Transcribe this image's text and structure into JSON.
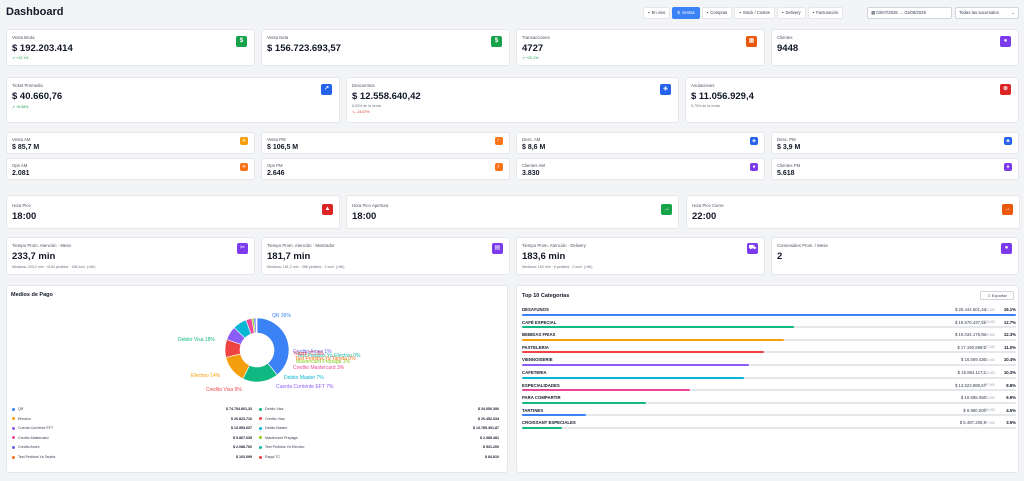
{
  "header": {
    "title": "Dashboard",
    "tabs": [
      {
        "label": "En vivo",
        "icon": "live-icon",
        "active": false
      },
      {
        "label": "Ventas",
        "icon": "dollar-icon",
        "active": true
      },
      {
        "label": "Compras",
        "icon": "cart-icon",
        "active": false
      },
      {
        "label": "Stock / Costos",
        "icon": "box-icon",
        "active": false
      },
      {
        "label": "Delivery",
        "icon": "truck-icon",
        "active": false
      },
      {
        "label": "Facturación",
        "icon": "invoice-icon",
        "active": false
      }
    ],
    "date_range": "03/07/2026 → 01/08/2026",
    "branch_select": "Todas las sucursales"
  },
  "kpis_row1": [
    {
      "label": "Venta Bruta",
      "value": "$ 192.203.414",
      "trend": "↗ +12.1%",
      "icon": "$",
      "color": "#16a34a"
    },
    {
      "label": "Venta Neta",
      "value": "$ 156.723.693,57",
      "trend": "",
      "icon": "$",
      "color": "#16a34a"
    },
    {
      "label": "Transacciones",
      "value": "4727",
      "trend": "↗ +20.1%",
      "icon": "▦",
      "color": "#ea580c"
    },
    {
      "label": "Clientes",
      "value": "9448",
      "trend": "",
      "icon": "👤",
      "color": "#7c3aed"
    }
  ],
  "kpis_row2": [
    {
      "label": "Ticket Promedio",
      "value": "$ 40.660,76",
      "sub": "",
      "trend": "↗ +6.08%",
      "icon": "↗",
      "color": "#2563eb"
    },
    {
      "label": "Descuentos",
      "value": "$ 12.558.640,42",
      "sub": "6,53% de la venta",
      "trend": "↘ -14.07%",
      "icon": "◈",
      "color": "#2563eb"
    },
    {
      "label": "Anulaciones",
      "value": "$ 11.056.929,4",
      "sub": "5,75% de la venta",
      "trend": "",
      "icon": "⊗",
      "color": "#dc2626"
    }
  ],
  "kpis_small": [
    {
      "label": "Venta AM",
      "value": "$ 85,7 M",
      "icon": "☀",
      "color": "#f59e0b"
    },
    {
      "label": "Venta PM",
      "value": "$ 106,5 M",
      "icon": "☾",
      "color": "#f97316"
    },
    {
      "label": "Desc. AM",
      "value": "$ 8,6 M",
      "icon": "◈",
      "color": "#2563eb"
    },
    {
      "label": "Desc. PM",
      "value": "$ 3,9 M",
      "icon": "◈",
      "color": "#2563eb"
    },
    {
      "label": "Ops AM",
      "value": "2.081",
      "icon": "☀",
      "color": "#f97316"
    },
    {
      "label": "Ops PM",
      "value": "2.646",
      "icon": "☾",
      "color": "#f97316"
    },
    {
      "label": "Clientes AM",
      "value": "3.830",
      "icon": "👤",
      "color": "#7c3aed"
    },
    {
      "label": "Clientes PM",
      "value": "5.618",
      "icon": "👤",
      "color": "#7c3aed"
    }
  ],
  "kpis_hours": [
    {
      "label": "Hora Pico",
      "value": "18:00",
      "icon": "🔥",
      "color": "#dc2626"
    },
    {
      "label": "Hora Pico Apertura",
      "value": "18:00",
      "icon": "→",
      "color": "#16a34a"
    },
    {
      "label": "Hora Pico Cierre",
      "value": "22:00",
      "icon": "→",
      "color": "#ea580c"
    }
  ],
  "kpis_times": [
    {
      "label": "Tiempo Prom. Atención · Mesa",
      "value": "233,7 min",
      "sub": "Mediana: 220,2 min · 4184 pedidos · 186 excl. (>8h)",
      "icon": "✂",
      "color": "#7c3aed"
    },
    {
      "label": "Tiempo Prom. Atención · Mostrador",
      "value": "181,7 min",
      "sub": "Mediana: 181,2 min · 388 pedidos · 2 excl. (>8h)",
      "icon": "▤",
      "color": "#7c3aed"
    },
    {
      "label": "Tiempo Prom. Atención · Delivery",
      "value": "183,6 min",
      "sub": "Mediana: 183 min · 6 pedidos · 0 excl. (>8h)",
      "icon": "⛟",
      "color": "#7c3aed"
    },
    {
      "label": "Comensales Prom. / Mesa",
      "value": "2",
      "sub": "",
      "icon": "👥",
      "color": "#7c3aed"
    }
  ],
  "payments": {
    "title": "Medios de Pago",
    "chart_data": {
      "type": "pie",
      "donut": true,
      "slices": [
        {
          "label": "QR 39%",
          "name": "QR",
          "value": 39,
          "color": "#3b82f6"
        },
        {
          "label": "Debito Visa 18%",
          "name": "Debito Visa",
          "value": 18,
          "color": "#10b981"
        },
        {
          "label": "Efectivo 14%",
          "name": "Efectivo",
          "value": 14,
          "color": "#f59e0b"
        },
        {
          "label": "Credito Visa 9%",
          "name": "Credito Visa",
          "value": 9,
          "color": "#ef4444"
        },
        {
          "label": "Cuenta Corriente EFT 7%",
          "name": "Cuenta Corriente EFT",
          "value": 7,
          "color": "#8b5cf6"
        },
        {
          "label": "Debito Master 7%",
          "name": "Debito Master",
          "value": 7,
          "color": "#06b6d4"
        },
        {
          "label": "Credito Mastercard 3%",
          "name": "Credito Mastercard",
          "value": 3,
          "color": "#ec4899"
        },
        {
          "label": "Mastercard Prepaga 1%",
          "name": "Mastercard Prepaga",
          "value": 1,
          "color": "#84cc16"
        },
        {
          "label": "Credito Amex 1%",
          "name": "Credito Amex",
          "value": 1,
          "color": "#6366f1"
        },
        {
          "label": "Test Pedidos Ya Efectivo 0%",
          "name": "Test Pedidos Ya Efectivo",
          "value": 0.3,
          "color": "#14b8a6"
        },
        {
          "label": "Test Pedidos Ya Tarjeta 0%",
          "name": "Test Pedidos Ya Tarjeta",
          "value": 0.2,
          "color": "#f97316"
        },
        {
          "label": "Rappi TC 0%",
          "name": "Rappi TC",
          "value": 0.1,
          "color": "#ef4444"
        }
      ]
    },
    "legend_left": [
      {
        "name": "QR",
        "value": "$ 74.754.801,33",
        "color": "#3b82f6"
      },
      {
        "name": "Efectivo",
        "value": "$ 26.823.716",
        "color": "#f59e0b"
      },
      {
        "name": "Cuenta Corriente EFT",
        "value": "$ 13.553.607",
        "color": "#8b5cf6"
      },
      {
        "name": "Credito Mastercard",
        "value": "$ 5.867.635",
        "color": "#ec4899"
      },
      {
        "name": "Credito Amex",
        "value": "$ 2.088.760",
        "color": "#6366f1"
      },
      {
        "name": "Test Pedidos Ya Tarjeta",
        "value": "$ 163.099",
        "color": "#f97316"
      }
    ],
    "legend_right": [
      {
        "name": "Debito Visa",
        "value": "$ 34.050.390",
        "color": "#10b981"
      },
      {
        "name": "Credito Visa",
        "value": "$ 20.452.334",
        "color": "#ef4444"
      },
      {
        "name": "Debito Master",
        "value": "$ 13.785.301,87",
        "color": "#06b6d4"
      },
      {
        "name": "Mastercard Prepaga",
        "value": "$ 2.385.481",
        "color": "#84cc16"
      },
      {
        "name": "Test Pedidos Ya Efectivo",
        "value": "$ 531.200",
        "color": "#14b8a6"
      },
      {
        "name": "Rappi TC",
        "value": "$ 84.810",
        "color": "#ef4444"
      }
    ]
  },
  "categories": {
    "title": "Top 10 Categorías",
    "export_label": "Exportar",
    "rows": [
      {
        "name": "DESAYUNOS",
        "amount": "$ 25.444.501,44",
        "units": "363.200",
        "pct": "16.1%",
        "fill": 1.0,
        "color": "#3b82f6"
      },
      {
        "name": "CAFÉ ESPECIAL",
        "amount": "$ 19.570.437,81",
        "units": "2763.000",
        "pct": "12.7%",
        "fill": 0.55,
        "color": "#10b981"
      },
      {
        "name": "BEBIDAS FRIAS",
        "amount": "$ 19.034.178,94",
        "units": "2649.000",
        "pct": "12.3%",
        "fill": 0.53,
        "color": "#f59e0b"
      },
      {
        "name": "PASTELERIA",
        "amount": "$ 17.190.888,2",
        "units": "3327.000",
        "pct": "11.0%",
        "fill": 0.49,
        "color": "#ef4444"
      },
      {
        "name": "VIENNOISERIE",
        "amount": "$ 16.069.430",
        "units": "4436.000",
        "pct": "10.4%",
        "fill": 0.46,
        "color": "#8b5cf6"
      },
      {
        "name": "CAFETERIA",
        "amount": "$ 15.864.117,1",
        "units": "3719.000",
        "pct": "10.3%",
        "fill": 0.45,
        "color": "#06b6d4"
      },
      {
        "name": "ESPECIALIDADES",
        "amount": "$ 13.523.989,57",
        "units": "737.000",
        "pct": "8.8%",
        "fill": 0.34,
        "color": "#ec4899"
      },
      {
        "name": "PARA COMPARTIR",
        "amount": "$ 10.685.050",
        "units": "265.000",
        "pct": "6.9%",
        "fill": 0.25,
        "color": "#10b981"
      },
      {
        "name": "TARTINES",
        "amount": "$ 6.980.000",
        "units": "246.000",
        "pct": "4.5%",
        "fill": 0.13,
        "color": "#3b82f6"
      },
      {
        "name": "CROISSANT ESPECIALES",
        "amount": "$ 5.487.208,9",
        "units": "377.000",
        "pct": "3.5%",
        "fill": 0.08,
        "color": "#10b981"
      }
    ]
  }
}
